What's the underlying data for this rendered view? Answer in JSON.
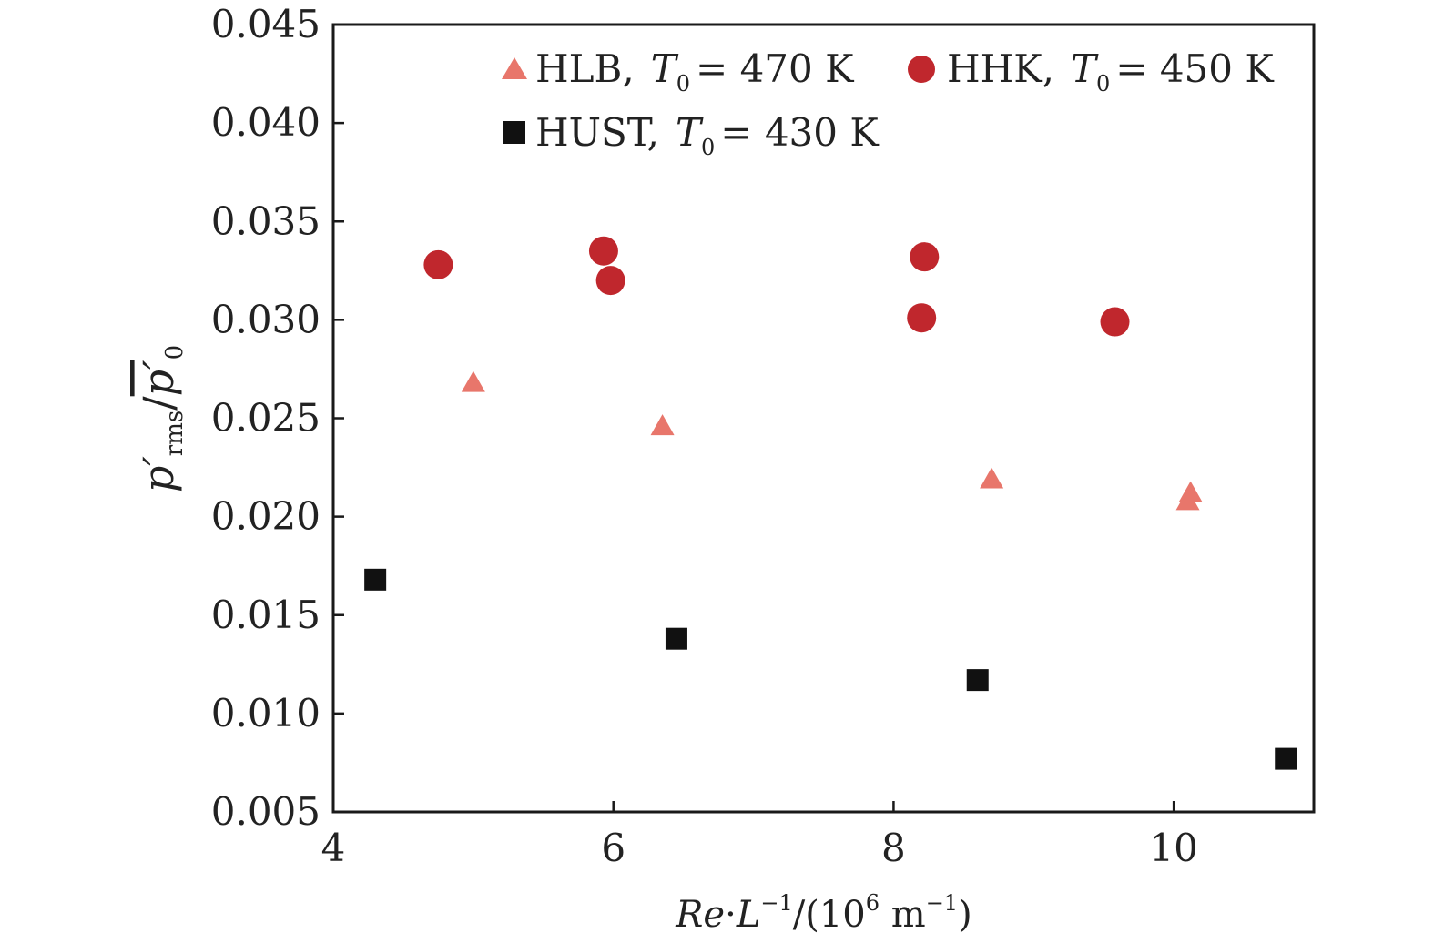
{
  "chart_data": {
    "type": "scatter",
    "title": "",
    "xlabel": {
      "re": "Re",
      "dot": "·",
      "l": "L",
      "exp": "−1",
      "unit_open": "/(10",
      "unit_exp": "6",
      "unit_mid": " m",
      "unit_exp2": "−1",
      "unit_close": ")"
    },
    "ylabel": {
      "p": "p′",
      "rms": "rms",
      "slash": "/",
      "p0": "p′",
      "zero": "0"
    },
    "xlim": [
      4,
      11
    ],
    "ylim": [
      0.005,
      0.045
    ],
    "xticks": [
      4,
      6,
      8,
      10
    ],
    "xtick_labels": [
      "4",
      "6",
      "8",
      "10"
    ],
    "yticks": [
      0.005,
      0.01,
      0.015,
      0.02,
      0.025,
      0.03,
      0.035,
      0.04,
      0.045
    ],
    "ytick_labels": [
      "0.005",
      "0.010",
      "0.015",
      "0.020",
      "0.025",
      "0.030",
      "0.035",
      "0.040",
      "0.045"
    ],
    "grid": false,
    "legend_position": "top-right",
    "series": [
      {
        "key": "hlb",
        "name": "HLB,",
        "t_label": "T",
        "t_sub": "0",
        "t_value": "= 470 K",
        "marker": "triangle",
        "color": "#e8766b",
        "x": [
          5.0,
          6.35,
          8.7,
          10.1,
          10.12
        ],
        "y": [
          0.0268,
          0.0246,
          0.0219,
          0.0208,
          0.0212
        ]
      },
      {
        "key": "hhk",
        "name": "HHK,",
        "t_label": "T",
        "t_sub": "0",
        "t_value": "= 450 K",
        "marker": "circle",
        "color": "#c0272d",
        "x": [
          4.75,
          5.93,
          5.98,
          8.2,
          8.22,
          9.58
        ],
        "y": [
          0.0328,
          0.0335,
          0.032,
          0.0301,
          0.0332,
          0.0299
        ]
      },
      {
        "key": "hust",
        "name": "HUST,",
        "t_label": "T",
        "t_sub": "0",
        "t_value": "= 430 K",
        "marker": "square",
        "color": "#111111",
        "x": [
          4.3,
          6.45,
          8.6,
          10.8
        ],
        "y": [
          0.0168,
          0.0138,
          0.0117,
          0.0077
        ]
      }
    ]
  }
}
